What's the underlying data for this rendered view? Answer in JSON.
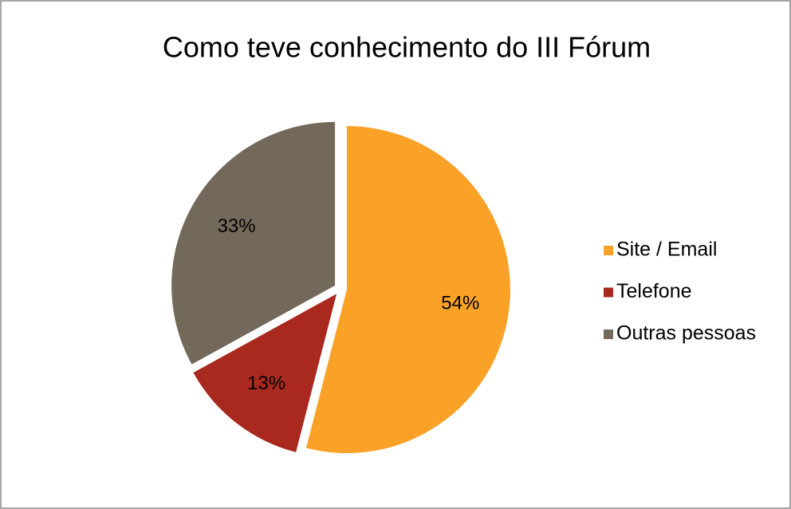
{
  "chart_data": {
    "type": "pie",
    "title": "Como teve conhecimento do III Fórum",
    "categories": [
      "Site / Email",
      "Telefone",
      "Outras pessoas"
    ],
    "values": [
      54,
      13,
      33
    ],
    "value_labels": [
      "54%",
      "13%",
      "33%"
    ],
    "colors": [
      "#f9a227",
      "#a9291f",
      "#72695a"
    ],
    "legend": "right"
  }
}
